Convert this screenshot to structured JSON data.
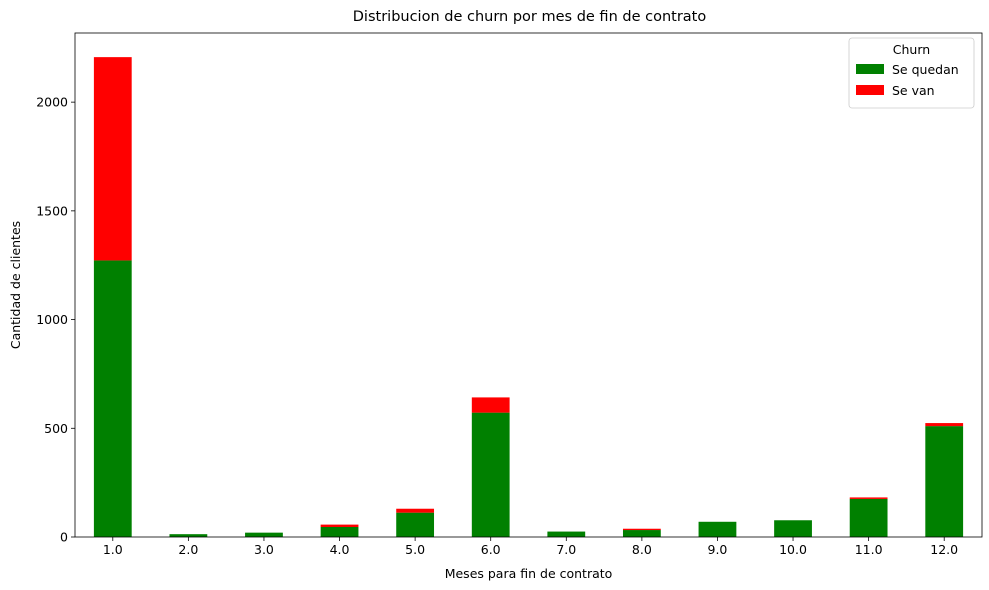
{
  "chart_data": {
    "type": "bar",
    "stacked": true,
    "title": "Distribucion de churn por mes de fin de contrato",
    "xlabel": "Meses para fin de contrato",
    "ylabel": "Cantidad de clientes",
    "categories": [
      "1.0",
      "2.0",
      "3.0",
      "4.0",
      "5.0",
      "6.0",
      "7.0",
      "8.0",
      "9.0",
      "10.0",
      "11.0",
      "12.0"
    ],
    "series": [
      {
        "name": "Se quedan",
        "color": "#008000",
        "values": [
          1272,
          13,
          20,
          46,
          112,
          572,
          25,
          32,
          70,
          77,
          175,
          510
        ]
      },
      {
        "name": "Se van",
        "color": "#ff0000",
        "values": [
          935,
          0,
          0,
          11,
          18,
          70,
          0,
          6,
          0,
          0,
          7,
          14
        ]
      }
    ],
    "ylim": [
      0,
      2318
    ],
    "yticks": [
      0,
      500,
      1000,
      1500,
      2000
    ],
    "legend": {
      "title": "Churn",
      "position": "top-right"
    },
    "grid": false
  }
}
